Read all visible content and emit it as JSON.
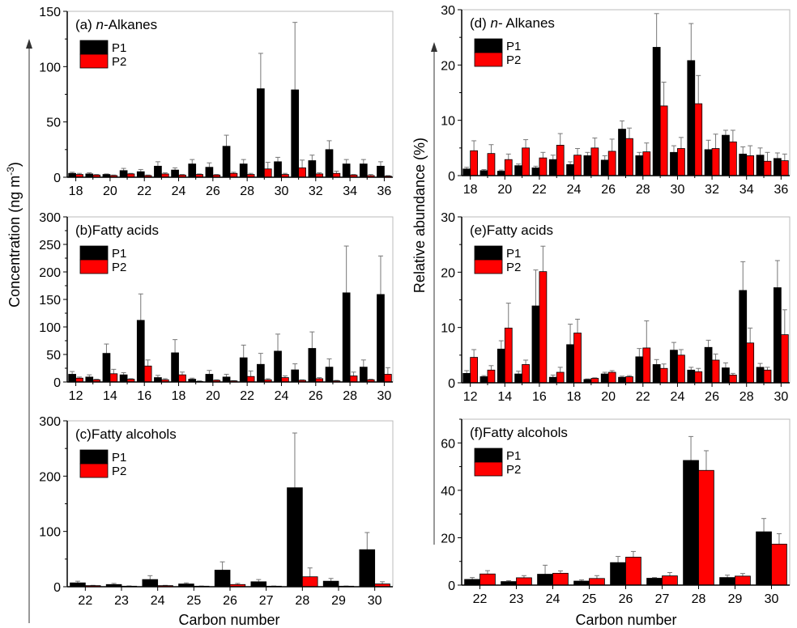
{
  "figure": {
    "ylabel_left": "Concentration (ng m",
    "ylabel_left_sup": "-3",
    "ylabel_left_close": ")",
    "ylabel_right": "Relative abundance (%)",
    "xlabel": "Carbon number",
    "colors": {
      "P1": "#000000",
      "P2": "#ff0000"
    }
  },
  "chart_data": [
    {
      "type": "bar",
      "id": "a",
      "title_parts": [
        "(a) ",
        "n",
        "-Alkanes"
      ],
      "categories": [
        18,
        19,
        20,
        21,
        22,
        23,
        24,
        25,
        26,
        27,
        28,
        29,
        30,
        31,
        32,
        33,
        34,
        35,
        36
      ],
      "xtick_labels": [
        "18",
        "20",
        "22",
        "24",
        "26",
        "28",
        "30",
        "32",
        "34",
        "36"
      ],
      "ylim": [
        0,
        150
      ],
      "yticks": [
        0,
        50,
        100,
        150
      ],
      "legend": [
        "P1",
        "P2"
      ],
      "series": [
        {
          "name": "P1",
          "values": [
            3.5,
            3,
            2.5,
            6,
            5,
            10,
            6.5,
            12,
            9,
            28,
            12,
            80,
            14,
            79,
            15,
            25,
            12,
            12,
            10
          ],
          "errors": [
            1,
            1,
            0.5,
            2,
            2,
            4,
            2,
            4,
            4,
            10,
            4,
            32,
            4,
            61,
            5,
            8,
            4,
            4,
            4
          ]
        },
        {
          "name": "P2",
          "values": [
            2.5,
            2,
            1.5,
            3,
            1.5,
            3,
            2,
            2.5,
            2,
            3.5,
            2.5,
            7.5,
            2.5,
            8.5,
            3,
            3.5,
            2,
            1.5,
            1
          ],
          "errors": [
            1,
            0.5,
            0.5,
            0.5,
            0.5,
            1,
            0.5,
            0.5,
            0.5,
            1,
            1,
            6,
            1,
            7,
            1,
            2,
            0.5,
            1,
            0.5
          ]
        }
      ]
    },
    {
      "type": "bar",
      "id": "b",
      "title_parts": [
        "(b)",
        "",
        "Fatty acids"
      ],
      "categories": [
        12,
        13,
        14,
        15,
        16,
        17,
        18,
        19,
        20,
        21,
        22,
        23,
        24,
        25,
        26,
        27,
        28,
        29,
        30
      ],
      "xtick_labels": [
        "12",
        "14",
        "16",
        "18",
        "20",
        "22",
        "24",
        "26",
        "28",
        "30"
      ],
      "ylim": [
        0,
        300
      ],
      "yticks": [
        0,
        50,
        100,
        150,
        200,
        250,
        300
      ],
      "legend": [
        "P1",
        "P2"
      ],
      "series": [
        {
          "name": "P1",
          "values": [
            14,
            9,
            52,
            13,
            112,
            8,
            53,
            5,
            14,
            9,
            44,
            32,
            56,
            22,
            61,
            27,
            162,
            27,
            159
          ],
          "errors": [
            5,
            4,
            17,
            4,
            48,
            4,
            24,
            2,
            7,
            5,
            23,
            20,
            31,
            11,
            30,
            15,
            85,
            13,
            70
          ]
        },
        {
          "name": "P2",
          "values": [
            7,
            4,
            15,
            5,
            29,
            4,
            13,
            1,
            3,
            2,
            10,
            4,
            8,
            3,
            6,
            2,
            11,
            4,
            14
          ],
          "errors": [
            2,
            1,
            8,
            1,
            11,
            2,
            5,
            1,
            1,
            0.5,
            10,
            2,
            3,
            1,
            2,
            1,
            7,
            1,
            12
          ]
        }
      ]
    },
    {
      "type": "bar",
      "id": "c",
      "title_parts": [
        "(c)",
        "",
        "Fatty alcohols"
      ],
      "categories": [
        22,
        23,
        24,
        25,
        26,
        27,
        28,
        29,
        30
      ],
      "xtick_labels": [
        "22",
        "23",
        "24",
        "25",
        "26",
        "27",
        "28",
        "29",
        "30"
      ],
      "ylim": [
        0,
        300
      ],
      "yticks": [
        0,
        100,
        200,
        300
      ],
      "legend": [
        "P1",
        "P2"
      ],
      "series": [
        {
          "name": "P1",
          "values": [
            7,
            4,
            13,
            5,
            30,
            9,
            179,
            10,
            67
          ],
          "errors": [
            3,
            2,
            7,
            2,
            15,
            4,
            99,
            5,
            31
          ]
        },
        {
          "name": "P2",
          "values": [
            2,
            1,
            2,
            1,
            4,
            1,
            18,
            1,
            5
          ],
          "errors": [
            0.5,
            0.5,
            0.5,
            0.3,
            2,
            0.3,
            16,
            0.3,
            4
          ]
        }
      ]
    },
    {
      "type": "bar",
      "id": "d",
      "title_parts": [
        "(d) ",
        "n",
        "- Alkanes"
      ],
      "categories": [
        18,
        19,
        20,
        21,
        22,
        23,
        24,
        25,
        26,
        27,
        28,
        29,
        30,
        31,
        32,
        33,
        34,
        35,
        36
      ],
      "xtick_labels": [
        "18",
        "20",
        "22",
        "24",
        "26",
        "28",
        "30",
        "32",
        "34",
        "36"
      ],
      "ylim": [
        0,
        30
      ],
      "yticks": [
        0,
        10,
        20,
        30
      ],
      "legend": [
        "P1",
        "P2"
      ],
      "series": [
        {
          "name": "P1",
          "values": [
            1.2,
            0.9,
            0.8,
            1.8,
            1.4,
            2.9,
            2.0,
            3.6,
            2.8,
            8.4,
            3.6,
            23.2,
            4.2,
            20.8,
            4.7,
            7.3,
            3.9,
            3.7,
            3.1
          ],
          "errors": [
            0.3,
            0.2,
            0.2,
            0.3,
            0.3,
            0.8,
            0.5,
            0.6,
            0.8,
            1.5,
            0.6,
            6.1,
            1.2,
            6.7,
            1.7,
            0.9,
            1.3,
            1.3,
            1.0
          ]
        },
        {
          "name": "P2",
          "values": [
            4.5,
            4.0,
            2.9,
            5.0,
            3.2,
            5.5,
            3.7,
            5.0,
            4.4,
            6.7,
            4.3,
            12.6,
            4.9,
            13.0,
            4.9,
            6.1,
            3.6,
            2.6,
            2.7
          ],
          "errors": [
            1.8,
            1.6,
            1.0,
            1.5,
            1.0,
            2.1,
            1.2,
            1.8,
            2.2,
            1.9,
            1.6,
            4.3,
            2.0,
            5.1,
            2.6,
            2.1,
            1.8,
            1.6,
            1.2
          ]
        }
      ]
    },
    {
      "type": "bar",
      "id": "e",
      "title_parts": [
        "(e)",
        "",
        "Fatty acids"
      ],
      "categories": [
        12,
        13,
        14,
        15,
        16,
        17,
        18,
        19,
        20,
        21,
        22,
        23,
        24,
        25,
        26,
        27,
        28,
        29,
        30
      ],
      "xtick_labels": [
        "12",
        "14",
        "16",
        "18",
        "20",
        "22",
        "24",
        "26",
        "28",
        "30"
      ],
      "ylim": [
        0,
        30
      ],
      "yticks": [
        0,
        10,
        20,
        30
      ],
      "legend": [
        "P1",
        "P2"
      ],
      "series": [
        {
          "name": "P1",
          "values": [
            1.7,
            1.1,
            6.1,
            1.6,
            13.9,
            1.0,
            6.9,
            0.6,
            1.6,
            1.0,
            4.7,
            3.3,
            5.9,
            2.3,
            6.4,
            2.7,
            16.7,
            2.8,
            17.2
          ],
          "errors": [
            0.5,
            0.2,
            1.5,
            0.5,
            6.5,
            0.4,
            3.7,
            0.1,
            0.3,
            0.2,
            1.5,
            0.9,
            1.4,
            0.5,
            1.3,
            0.9,
            5.2,
            0.7,
            4.9
          ]
        },
        {
          "name": "P2",
          "values": [
            4.6,
            2.3,
            9.9,
            3.3,
            20.1,
            1.9,
            9.0,
            0.8,
            1.9,
            1.1,
            6.3,
            2.6,
            5.0,
            2.0,
            4.1,
            1.4,
            7.2,
            2.3,
            8.7
          ],
          "errors": [
            1.4,
            0.8,
            4.5,
            0.8,
            4.6,
            0.9,
            2.5,
            0.1,
            0.3,
            0.2,
            4.9,
            0.8,
            1.0,
            0.6,
            1.1,
            0.3,
            2.7,
            0.5,
            4.5
          ]
        }
      ]
    },
    {
      "type": "bar",
      "id": "f",
      "title_parts": [
        "(f)",
        "",
        "Fatty alcohols"
      ],
      "categories": [
        22,
        23,
        24,
        25,
        26,
        27,
        28,
        29,
        30
      ],
      "xtick_labels": [
        "22",
        "23",
        "24",
        "25",
        "26",
        "27",
        "28",
        "29",
        "30"
      ],
      "ylim": [
        0,
        70
      ],
      "yticks": [
        0,
        20,
        40,
        60
      ],
      "legend": [
        "P1",
        "P2"
      ],
      "series": [
        {
          "name": "P1",
          "values": [
            2.4,
            1.5,
            4.6,
            1.7,
            9.5,
            2.9,
            52.6,
            3.2,
            22.5
          ],
          "errors": [
            0.8,
            0.4,
            3.8,
            0.5,
            2.6,
            0.3,
            10.1,
            1.0,
            5.6
          ]
        },
        {
          "name": "P2",
          "values": [
            4.7,
            3.1,
            5.0,
            2.8,
            11.8,
            3.9,
            48.4,
            3.8,
            17.3
          ],
          "errors": [
            1.4,
            0.9,
            1.0,
            1.2,
            2.4,
            1.4,
            8.3,
            1.1,
            4.4
          ]
        }
      ]
    }
  ]
}
